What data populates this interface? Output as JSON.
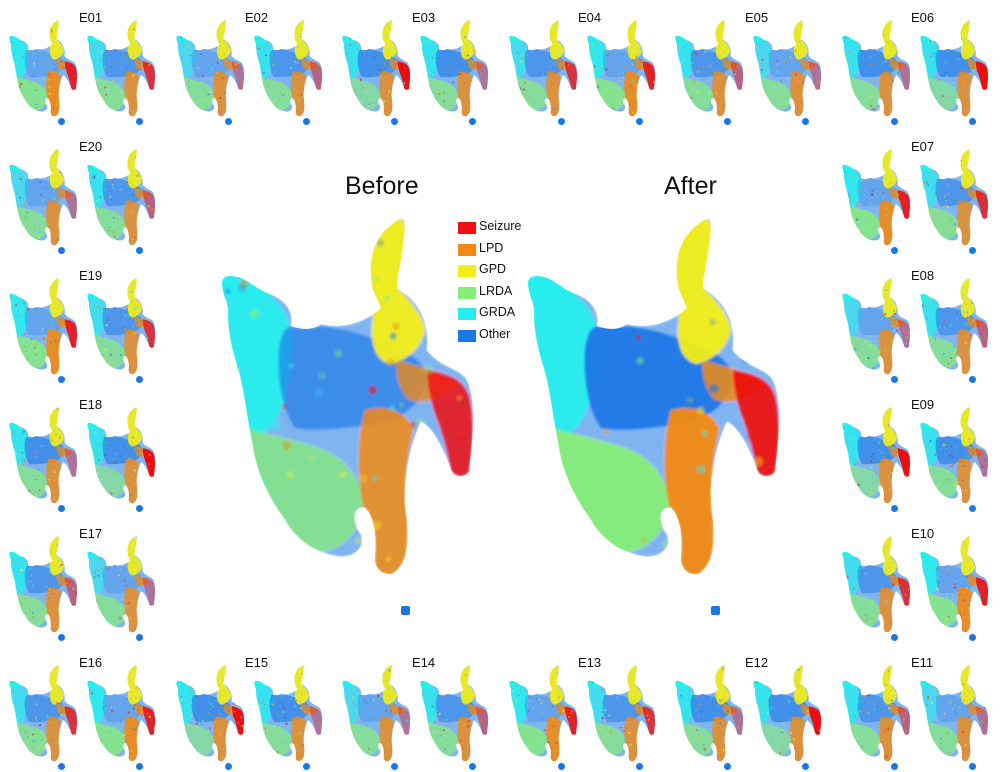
{
  "chart_data": {
    "type": "scatter",
    "description_legend": "categories",
    "legend": [
      {
        "label": "Seizure",
        "color": "#ee1111"
      },
      {
        "label": "LPD",
        "color": "#f28a12"
      },
      {
        "label": "GPD",
        "color": "#f3ee18"
      },
      {
        "label": "LRDA",
        "color": "#86ee78"
      },
      {
        "label": "GRDA",
        "color": "#28eeee"
      },
      {
        "label": "Other",
        "color": "#1a78e6"
      }
    ],
    "main_panels": [
      {
        "title": "Before",
        "mix": "before"
      },
      {
        "title": "After",
        "mix": "after"
      }
    ],
    "expert_panels": [
      {
        "label": "E01"
      },
      {
        "label": "E02"
      },
      {
        "label": "E03"
      },
      {
        "label": "E04"
      },
      {
        "label": "E05"
      },
      {
        "label": "E06"
      },
      {
        "label": "E07"
      },
      {
        "label": "E08"
      },
      {
        "label": "E09"
      },
      {
        "label": "E10"
      },
      {
        "label": "E11"
      },
      {
        "label": "E12"
      },
      {
        "label": "E13"
      },
      {
        "label": "E14"
      },
      {
        "label": "E15"
      },
      {
        "label": "E16"
      },
      {
        "label": "E17"
      },
      {
        "label": "E18"
      },
      {
        "label": "E19"
      },
      {
        "label": "E20"
      }
    ],
    "marker_color": "#1a78e6"
  }
}
